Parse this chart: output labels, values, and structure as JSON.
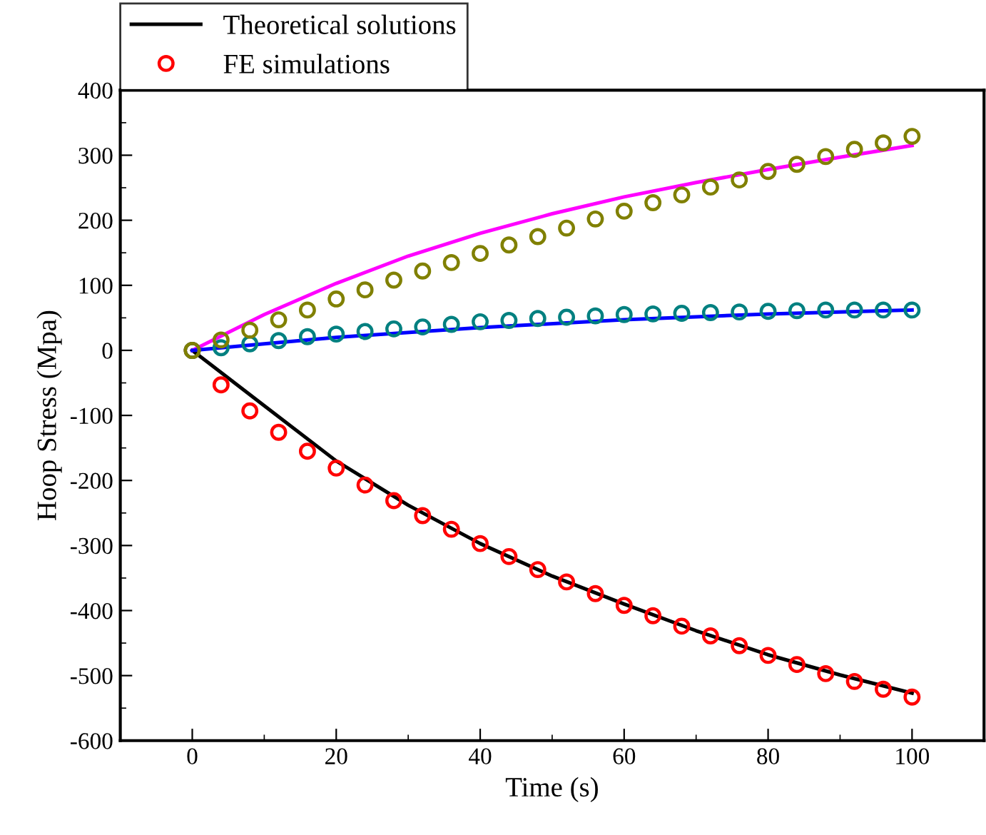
{
  "chart_data": {
    "type": "line",
    "xlabel": "Time (s)",
    "ylabel": "Hoop Stress (Mpa)",
    "xlim": [
      -10,
      110
    ],
    "ylim": [
      -600,
      400
    ],
    "xticks": [
      0,
      20,
      40,
      60,
      80,
      100
    ],
    "yticks": [
      -600,
      -500,
      -400,
      -300,
      -200,
      -100,
      0,
      100,
      200,
      300,
      400
    ],
    "legend": "top left",
    "series": [
      {
        "name": "Theoretical solutions",
        "color": "#000000",
        "marker": "none",
        "x": [
          0,
          10,
          20,
          30,
          40,
          50,
          60,
          70,
          80,
          90,
          100
        ],
        "values": [
          0,
          -85,
          -170,
          -238,
          -297,
          -347,
          -390,
          -431,
          -468,
          -499,
          -527
        ]
      },
      {
        "name": "FE simulations",
        "type": "scatter",
        "color": "#ff0000",
        "marker": "circle",
        "x": [
          0,
          4,
          8,
          12,
          16,
          20,
          24,
          28,
          32,
          36,
          40,
          44,
          48,
          52,
          56,
          60,
          64,
          68,
          72,
          76,
          80,
          84,
          88,
          92,
          96,
          100
        ],
        "values": [
          0,
          -53,
          -93,
          -126,
          -155,
          -181,
          -207,
          -231,
          -254,
          -275,
          -297,
          -317,
          -337,
          -356,
          -374,
          -392,
          -408,
          -424,
          -439,
          -454,
          -469,
          -483,
          -497,
          -509,
          -521,
          -533
        ]
      },
      {
        "color": "#ff00ff",
        "marker": "none",
        "x": [
          0,
          10,
          20,
          30,
          40,
          50,
          60,
          70,
          80,
          90,
          100
        ],
        "values": [
          0,
          55,
          103,
          145,
          180,
          210,
          236,
          258,
          278,
          297,
          315
        ]
      },
      {
        "color": "#0000ff",
        "marker": "none",
        "x": [
          0,
          10,
          20,
          40,
          60,
          80,
          100
        ],
        "values": [
          0,
          10,
          20,
          35,
          47,
          56,
          62
        ]
      },
      {
        "type": "scatter",
        "color": "#008080",
        "marker": "circle",
        "x": [
          0,
          4,
          8,
          12,
          16,
          20,
          24,
          28,
          32,
          36,
          40,
          44,
          48,
          52,
          56,
          60,
          64,
          68,
          72,
          76,
          80,
          84,
          88,
          92,
          96,
          100
        ],
        "values": [
          0,
          4,
          10,
          15,
          21,
          25,
          29,
          33,
          36,
          40,
          44,
          46,
          49,
          51,
          53,
          55,
          56,
          57,
          58,
          59,
          60,
          61,
          62,
          62,
          62,
          62
        ]
      },
      {
        "type": "scatter",
        "color": "#808000",
        "marker": "circle",
        "x": [
          0,
          4,
          8,
          12,
          16,
          20,
          24,
          28,
          32,
          36,
          40,
          44,
          48,
          52,
          56,
          60,
          64,
          68,
          72,
          76,
          80,
          84,
          88,
          92,
          96,
          100
        ],
        "values": [
          0,
          16,
          31,
          47,
          62,
          79,
          93,
          108,
          122,
          135,
          149,
          162,
          175,
          188,
          202,
          214,
          227,
          239,
          251,
          262,
          275,
          286,
          298,
          309,
          319,
          329
        ]
      }
    ]
  }
}
